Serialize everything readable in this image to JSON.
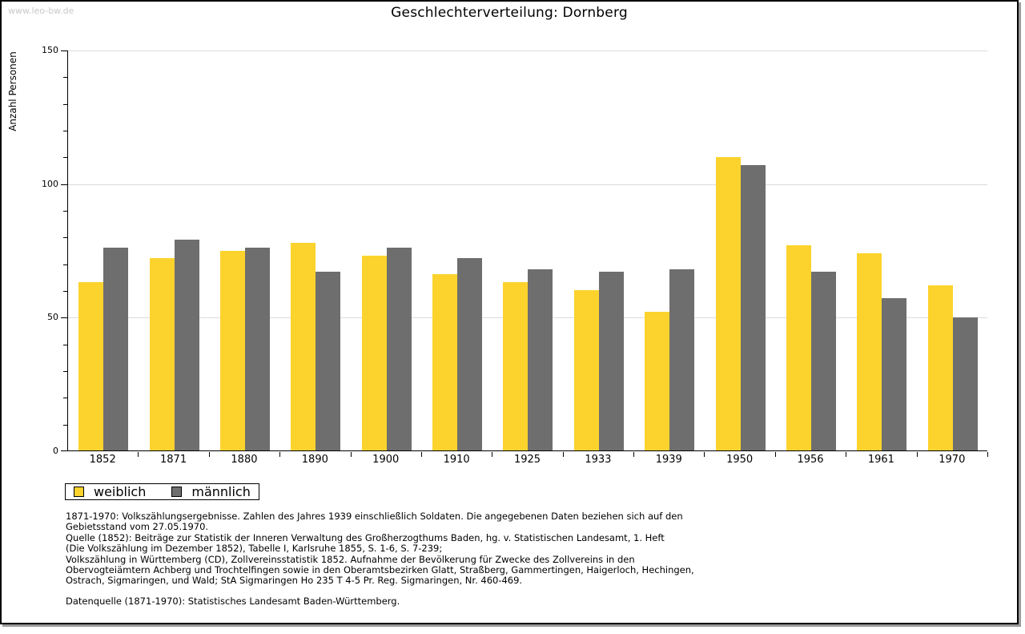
{
  "watermark": "www.leo-bw.de",
  "chart_data": {
    "type": "bar",
    "title": "Geschlechterverteilung: Dornberg",
    "xlabel": "",
    "ylabel": "Anzahl Personen",
    "categories": [
      "1852",
      "1871",
      "1880",
      "1890",
      "1900",
      "1910",
      "1925",
      "1933",
      "1939",
      "1950",
      "1956",
      "1961",
      "1970"
    ],
    "series": [
      {
        "name": "weiblich",
        "color": "#fcd32d",
        "values": [
          63,
          72,
          75,
          78,
          73,
          66,
          63,
          60,
          52,
          110,
          77,
          74,
          62
        ]
      },
      {
        "name": "männlich",
        "color": "#6e6e6e",
        "values": [
          76,
          79,
          76,
          67,
          76,
          72,
          68,
          67,
          68,
          107,
          67,
          57,
          50
        ]
      }
    ],
    "ylim": [
      0,
      150
    ],
    "yticks_major": [
      0,
      50,
      100,
      150
    ],
    "ytick_minor_step": 10,
    "grid": "horizontal-major-light-gray",
    "legend_position": "bottom-left-boxed"
  },
  "legend": {
    "items": [
      {
        "label": "weiblich",
        "color": "#fcd32d"
      },
      {
        "label": "männlich",
        "color": "#6e6e6e"
      }
    ]
  },
  "footnotes": {
    "block1": [
      "1871-1970: Volkszählungsergebnisse. Zahlen des Jahres 1939 einschließlich Soldaten. Die angegebenen Daten beziehen sich auf den",
      "Gebietsstand vom 27.05.1970.",
      "Quelle (1852): Beiträge zur Statistik der Inneren Verwaltung des Großherzogthums Baden, hg. v. Statistischen Landesamt, 1. Heft",
      "(Die Volkszählung im Dezember 1852), Tabelle I, Karlsruhe 1855, S. 1-6, S. 7-239;",
      "Volkszählung in Württemberg (CD), Zollvereinsstatistik 1852. Aufnahme der Bevölkerung für Zwecke des Zollvereins in den",
      "Obervogteiämtern Achberg und Trochtelfingen sowie in den Oberamtsbezirken Glatt, Straßberg, Gammertingen, Haigerloch, Hechingen,",
      "Ostrach, Sigmaringen, und Wald; StA Sigmaringen Ho 235 T 4-5 Pr. Reg. Sigmaringen, Nr. 460-469."
    ],
    "block2": "Datenquelle (1871-1970): Statistisches Landesamt Baden-Württemberg."
  }
}
